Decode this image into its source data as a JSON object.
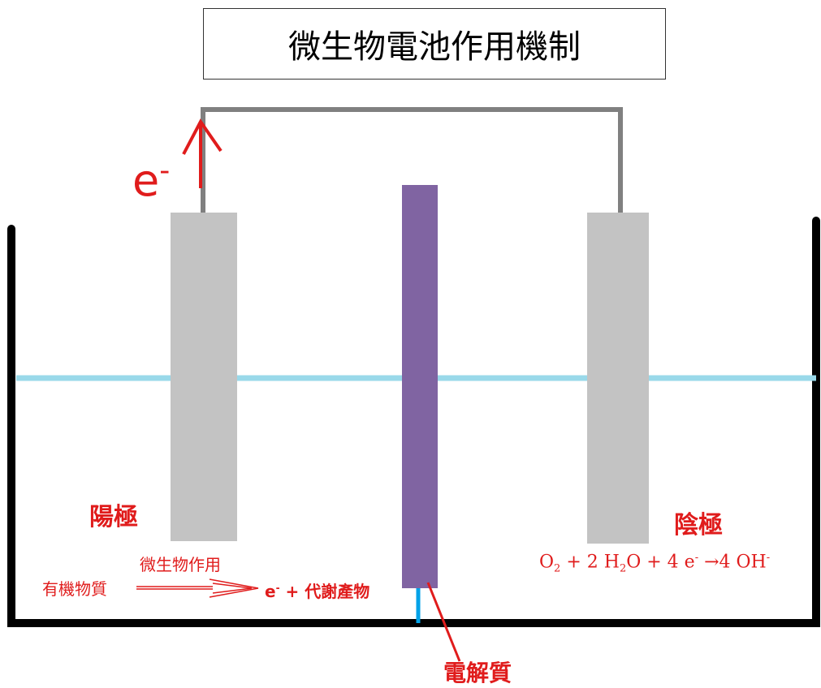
{
  "title": "微生物電池作用機制",
  "electron_label": "e",
  "electron_sup": "-",
  "anode": {
    "label": "陽極"
  },
  "cathode": {
    "label": "陰極"
  },
  "anode_reaction": {
    "above_arrow": "微生物作用",
    "reactant": "有機物質",
    "product_e": "e",
    "product_sup": "-",
    "product_rest": "+ 代謝產物"
  },
  "cathode_reaction": {
    "o2": "O",
    "o2_sub": "2",
    "plus1": " + 2 H",
    "h2o_sub": "2",
    "h2o_tail": "O + 4 e",
    "e_sup": "-",
    "arrow_part": " →4 OH",
    "oh_sup": "-"
  },
  "electrolyte": {
    "label": "電解質"
  },
  "colors": {
    "wire": "#808080",
    "electrode": "#c3c3c3",
    "membrane": "#8064a2",
    "water": "#99d9ea",
    "container": "#000000",
    "annotation": "#e01c1c"
  }
}
